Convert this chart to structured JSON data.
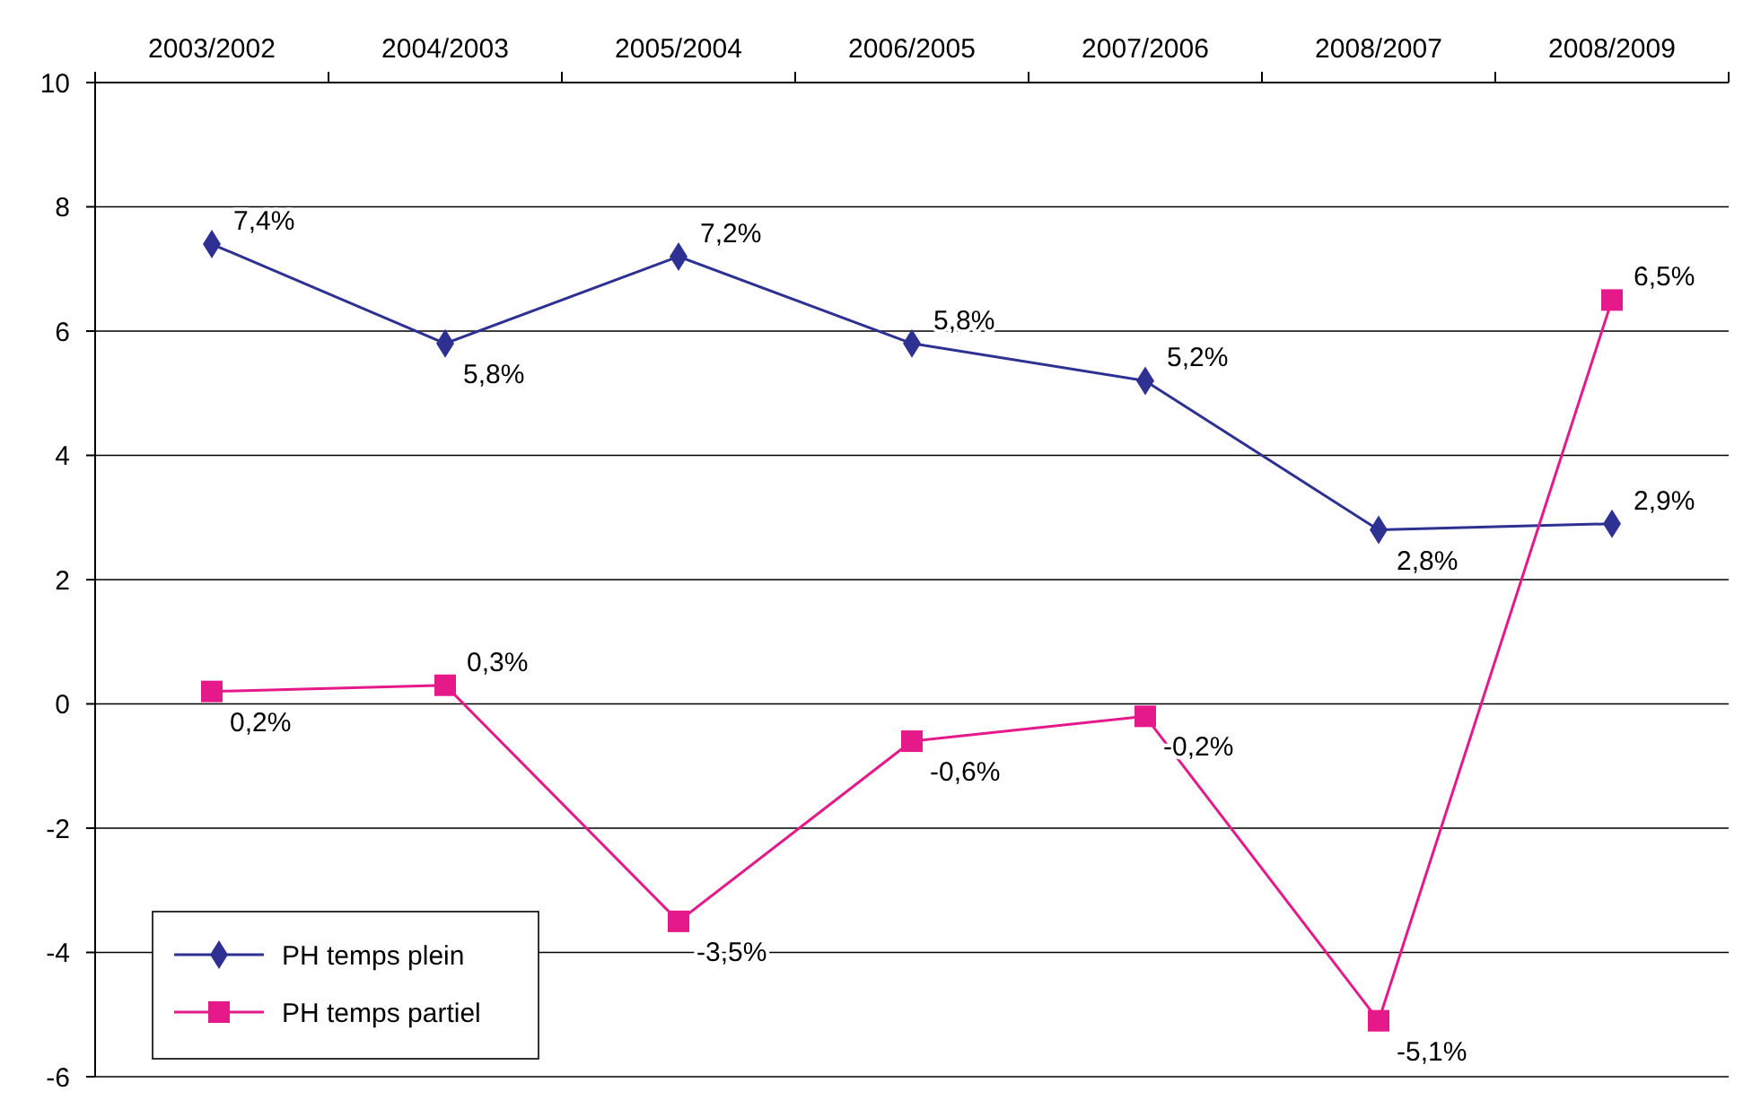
{
  "chart_data": {
    "type": "line",
    "categories": [
      "2003/2002",
      "2004/2003",
      "2005/2004",
      "2006/2005",
      "2007/2006",
      "2008/2007",
      "2008/2009"
    ],
    "series": [
      {
        "name": "PH temps plein",
        "color": "#2e3192",
        "marker": "diamond",
        "values": [
          7.4,
          5.8,
          7.2,
          5.8,
          5.2,
          2.8,
          2.9
        ],
        "value_labels": [
          "7,4%",
          "5,8%",
          "7,2%",
          "5,8%",
          "5,2%",
          "2,8%",
          "2,9%"
        ]
      },
      {
        "name": "PH temps partiel",
        "color": "#e5198a",
        "marker": "square",
        "values": [
          0.2,
          0.3,
          -3.5,
          -0.6,
          -0.2,
          -5.1,
          6.5
        ],
        "value_labels": [
          "0,2%",
          "0,3%",
          "-3,5%",
          "-0,6%",
          "-0,2%",
          "-5,1%",
          "6,5%"
        ]
      }
    ],
    "ylim": [
      -6,
      10
    ],
    "yticks": [
      -6,
      -4,
      -2,
      0,
      2,
      4,
      6,
      8,
      10
    ],
    "grid": "y",
    "legend": "bottom left",
    "line_style": "solid"
  }
}
